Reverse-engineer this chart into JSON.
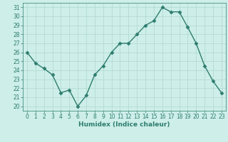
{
  "x": [
    0,
    1,
    2,
    3,
    4,
    5,
    6,
    7,
    8,
    9,
    10,
    11,
    12,
    13,
    14,
    15,
    16,
    17,
    18,
    19,
    20,
    21,
    22,
    23
  ],
  "y": [
    26,
    24.8,
    24.2,
    23.5,
    21.5,
    21.8,
    20.0,
    21.2,
    23.5,
    24.5,
    26.0,
    27.0,
    27.0,
    28.0,
    29.0,
    29.5,
    31.0,
    30.5,
    30.5,
    28.8,
    27.0,
    24.5,
    22.8,
    21.5
  ],
  "line_color": "#2e7d6e",
  "marker": "D",
  "marker_size": 2.5,
  "bg_color": "#cdeee9",
  "grid_color": "#b0d8ce",
  "xlabel": "Humidex (Indice chaleur)",
  "xlim": [
    -0.5,
    23.5
  ],
  "ylim": [
    19.5,
    31.5
  ],
  "yticks": [
    20,
    21,
    22,
    23,
    24,
    25,
    26,
    27,
    28,
    29,
    30,
    31
  ],
  "xticks": [
    0,
    1,
    2,
    3,
    4,
    5,
    6,
    7,
    8,
    9,
    10,
    11,
    12,
    13,
    14,
    15,
    16,
    17,
    18,
    19,
    20,
    21,
    22,
    23
  ],
  "tick_fontsize": 5.5,
  "xlabel_fontsize": 6.5,
  "linewidth": 1.0
}
